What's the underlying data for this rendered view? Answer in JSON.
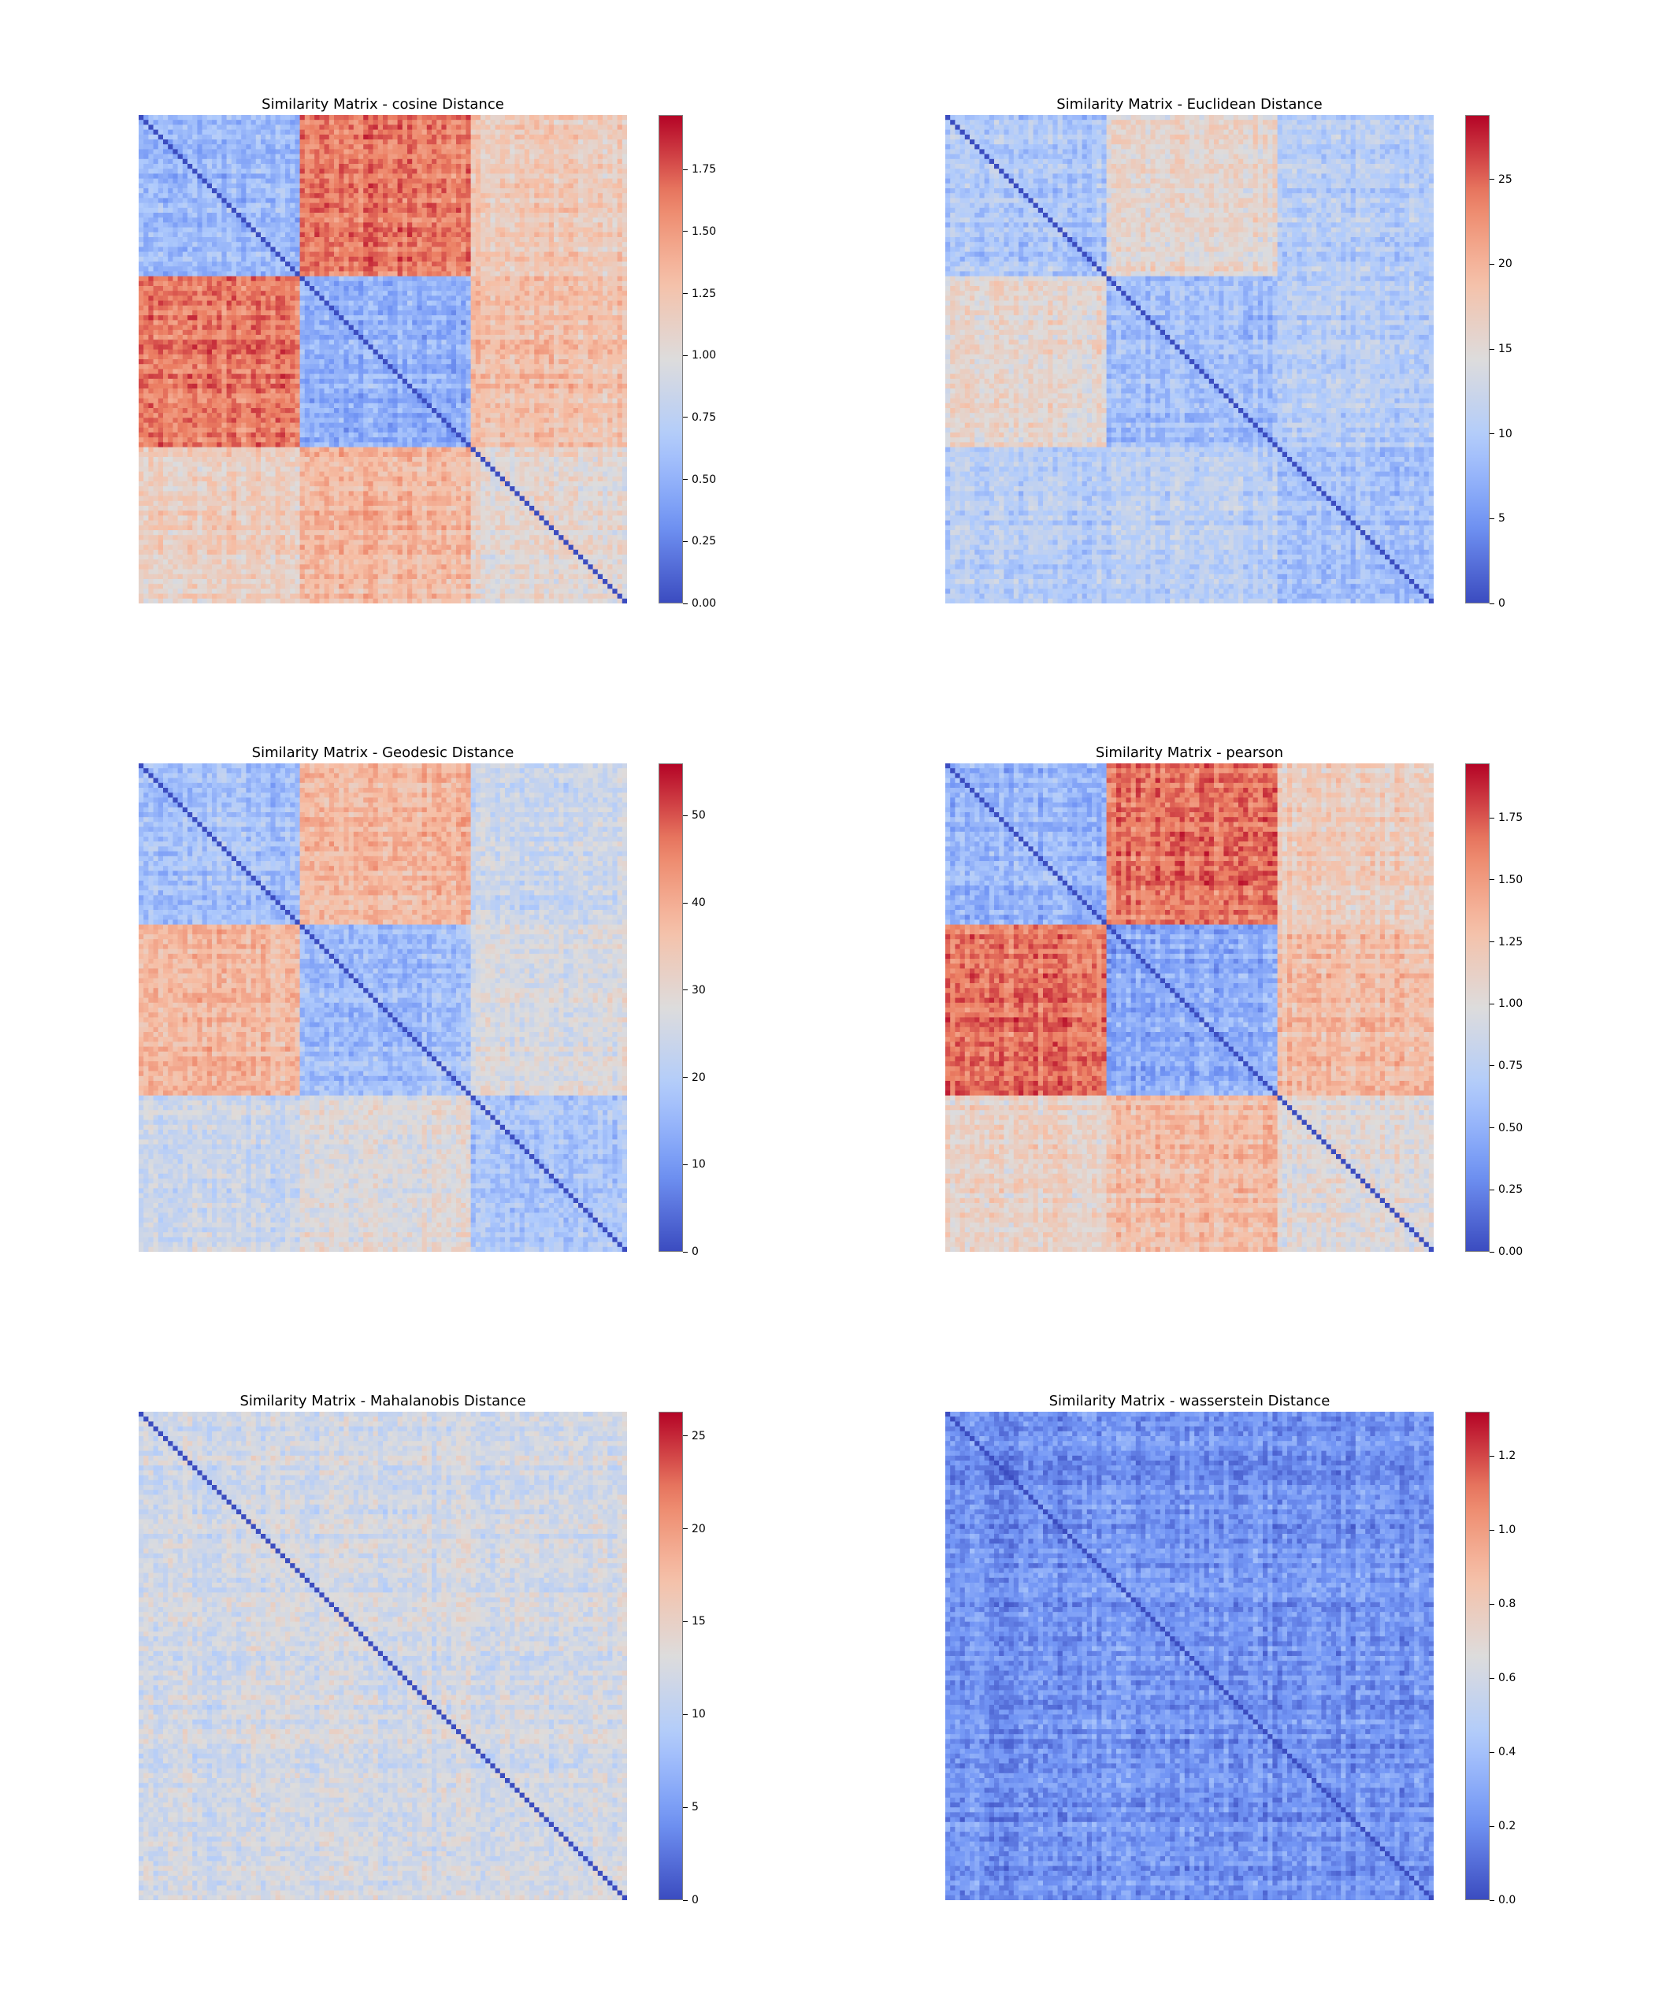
{
  "figure": {
    "colormap": "coolwarm",
    "colormap_stops": [
      "#3b4cc0",
      "#7396f5",
      "#b0cbfc",
      "#dddcdc",
      "#f6bfa6",
      "#ec8064",
      "#b40426"
    ]
  },
  "chart_data": [
    {
      "type": "heatmap",
      "title": "Similarity Matrix - cosine Distance",
      "xlabel": "",
      "ylabel": "",
      "vmin": 0.0,
      "vmax": 1.97,
      "colorbar_ticks": [
        0.0,
        0.25,
        0.5,
        0.75,
        1.0,
        1.25,
        1.5,
        1.75
      ],
      "colorbar_tick_labels": [
        "0.00",
        "0.25",
        "0.50",
        "0.75",
        "1.00",
        "1.25",
        "1.50",
        "1.75"
      ],
      "n_samples": 300,
      "cluster_boundaries": [
        0,
        100,
        205,
        300
      ],
      "block_means": [
        [
          0.55,
          1.65,
          1.2
        ],
        [
          1.65,
          0.5,
          1.3
        ],
        [
          1.15,
          1.35,
          1.05
        ]
      ],
      "diagonal_value": 0.0
    },
    {
      "type": "heatmap",
      "title": "Similarity Matrix - Euclidean Distance",
      "xlabel": "",
      "ylabel": "",
      "vmin": 0,
      "vmax": 28.8,
      "colorbar_ticks": [
        0,
        5,
        10,
        15,
        20,
        25
      ],
      "colorbar_tick_labels": [
        "0",
        "5",
        "10",
        "15",
        "20",
        "25"
      ],
      "n_samples": 300,
      "cluster_boundaries": [
        0,
        100,
        205,
        300
      ],
      "block_means": [
        [
          9.5,
          15.5,
          10.5
        ],
        [
          15.5,
          8.5,
          10.5
        ],
        [
          10.5,
          11.0,
          9.0
        ]
      ],
      "diagonal_value": 0
    },
    {
      "type": "heatmap",
      "title": "Similarity Matrix - Geodesic Distance",
      "xlabel": "",
      "ylabel": "",
      "vmin": 0,
      "vmax": 56,
      "colorbar_ticks": [
        0,
        10,
        20,
        30,
        40,
        50
      ],
      "colorbar_tick_labels": [
        "0",
        "10",
        "20",
        "30",
        "40",
        "50"
      ],
      "n_samples": 300,
      "cluster_boundaries": [
        0,
        100,
        205,
        300
      ],
      "block_means": [
        [
          17.0,
          38.0,
          24.0
        ],
        [
          38.0,
          16.0,
          27.0
        ],
        [
          24.0,
          28.0,
          18.0
        ]
      ],
      "diagonal_value": 0
    },
    {
      "type": "heatmap",
      "title": "Similarity Matrix - pearson",
      "xlabel": "",
      "ylabel": "",
      "vmin": 0.0,
      "vmax": 1.97,
      "colorbar_ticks": [
        0.0,
        0.25,
        0.5,
        0.75,
        1.0,
        1.25,
        1.5,
        1.75
      ],
      "colorbar_tick_labels": [
        "0.00",
        "0.25",
        "0.50",
        "0.75",
        "1.00",
        "1.25",
        "1.50",
        "1.75"
      ],
      "n_samples": 300,
      "cluster_boundaries": [
        0,
        100,
        205,
        300
      ],
      "block_means": [
        [
          0.5,
          1.65,
          1.15
        ],
        [
          1.65,
          0.45,
          1.3
        ],
        [
          1.1,
          1.3,
          1.0
        ]
      ],
      "diagonal_value": 0.0
    },
    {
      "type": "heatmap",
      "title": "Similarity Matrix - Mahalanobis Distance",
      "xlabel": "",
      "ylabel": "",
      "vmin": 0,
      "vmax": 26.3,
      "colorbar_ticks": [
        0,
        5,
        10,
        15,
        20,
        25
      ],
      "colorbar_tick_labels": [
        "0",
        "5",
        "10",
        "15",
        "20",
        "25"
      ],
      "n_samples": 300,
      "cluster_boundaries": [
        0,
        300
      ],
      "block_means": [
        [
          12.0
        ]
      ],
      "diagonal_value": 0
    },
    {
      "type": "heatmap",
      "title": "Similarity Matrix - wasserstein Distance",
      "xlabel": "",
      "ylabel": "",
      "vmin": 0.0,
      "vmax": 1.32,
      "colorbar_ticks": [
        0.0,
        0.2,
        0.4,
        0.6,
        0.8,
        1.0,
        1.2
      ],
      "colorbar_tick_labels": [
        "0.0",
        "0.2",
        "0.4",
        "0.6",
        "0.8",
        "1.0",
        "1.2"
      ],
      "n_samples": 300,
      "cluster_boundaries": [
        0,
        300
      ],
      "block_means": [
        [
          0.22
        ]
      ],
      "diagonal_value": 0.0
    }
  ]
}
